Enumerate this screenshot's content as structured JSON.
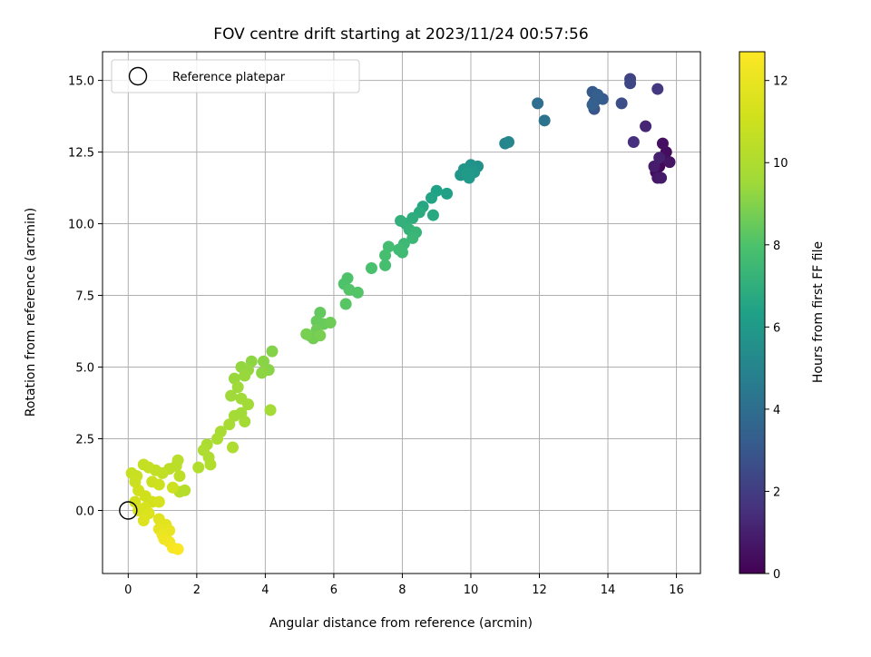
{
  "chart_data": {
    "type": "scatter",
    "title": "FOV centre drift starting at 2023/11/24 00:57:56",
    "xlabel": "Angular distance from reference (arcmin)",
    "ylabel": "Rotation from reference (arcmin)",
    "xlim": [
      -0.75,
      16.7
    ],
    "ylim": [
      -2.2,
      16.0
    ],
    "xticks": [
      0,
      2,
      4,
      6,
      8,
      10,
      12,
      14,
      16
    ],
    "yticks": [
      0.0,
      2.5,
      5.0,
      7.5,
      10.0,
      12.5,
      15.0
    ],
    "xtick_labels": [
      "0",
      "2",
      "4",
      "6",
      "8",
      "10",
      "12",
      "14",
      "16"
    ],
    "ytick_labels": [
      "0.0",
      "2.5",
      "5.0",
      "7.5",
      "10.0",
      "12.5",
      "15.0"
    ],
    "grid": true,
    "legend": {
      "position": "top-left",
      "entries": [
        "Reference platepar"
      ]
    },
    "reference_point": {
      "x": 0,
      "y": 0,
      "label": "Reference platepar"
    },
    "colorbar": {
      "label": "Hours from first FF file",
      "colormap": "viridis",
      "range": [
        0,
        12.7
      ],
      "ticks": [
        0,
        2,
        4,
        6,
        8,
        10,
        12
      ],
      "tick_labels": [
        "0",
        "2",
        "4",
        "6",
        "8",
        "10",
        "12"
      ]
    },
    "points": [
      {
        "x": 15.5,
        "y": 12.0,
        "c": 0.1
      },
      {
        "x": 15.6,
        "y": 12.2,
        "c": 0.2
      },
      {
        "x": 15.4,
        "y": 11.8,
        "c": 0.3
      },
      {
        "x": 15.7,
        "y": 12.5,
        "c": 0.4
      },
      {
        "x": 15.6,
        "y": 12.8,
        "c": 0.5
      },
      {
        "x": 15.8,
        "y": 12.15,
        "c": 0.6
      },
      {
        "x": 15.45,
        "y": 11.6,
        "c": 0.7
      },
      {
        "x": 15.55,
        "y": 11.6,
        "c": 0.8
      },
      {
        "x": 15.35,
        "y": 12.0,
        "c": 0.9
      },
      {
        "x": 15.5,
        "y": 12.3,
        "c": 1.0
      },
      {
        "x": 15.1,
        "y": 13.4,
        "c": 1.2
      },
      {
        "x": 14.75,
        "y": 12.85,
        "c": 1.5
      },
      {
        "x": 15.45,
        "y": 14.7,
        "c": 1.8
      },
      {
        "x": 14.65,
        "y": 15.05,
        "c": 2.2
      },
      {
        "x": 14.65,
        "y": 14.9,
        "c": 2.4
      },
      {
        "x": 14.4,
        "y": 14.2,
        "c": 2.6
      },
      {
        "x": 13.6,
        "y": 14.0,
        "c": 2.9
      },
      {
        "x": 13.6,
        "y": 14.25,
        "c": 3.0
      },
      {
        "x": 13.55,
        "y": 14.6,
        "c": 3.1
      },
      {
        "x": 13.85,
        "y": 14.35,
        "c": 3.2
      },
      {
        "x": 13.7,
        "y": 14.5,
        "c": 3.3
      },
      {
        "x": 13.55,
        "y": 14.15,
        "c": 3.4
      },
      {
        "x": 11.95,
        "y": 14.2,
        "c": 4.0
      },
      {
        "x": 12.15,
        "y": 13.6,
        "c": 4.2
      },
      {
        "x": 11.0,
        "y": 12.8,
        "c": 5.0
      },
      {
        "x": 11.1,
        "y": 12.85,
        "c": 5.1
      },
      {
        "x": 10.2,
        "y": 12.0,
        "c": 5.6
      },
      {
        "x": 10.0,
        "y": 12.05,
        "c": 5.7
      },
      {
        "x": 9.8,
        "y": 11.9,
        "c": 5.8
      },
      {
        "x": 9.7,
        "y": 11.7,
        "c": 5.9
      },
      {
        "x": 10.1,
        "y": 11.8,
        "c": 5.9
      },
      {
        "x": 9.95,
        "y": 11.6,
        "c": 6.0
      },
      {
        "x": 9.9,
        "y": 11.75,
        "c": 6.0
      },
      {
        "x": 9.3,
        "y": 11.05,
        "c": 6.3
      },
      {
        "x": 9.0,
        "y": 11.15,
        "c": 6.4
      },
      {
        "x": 8.85,
        "y": 10.9,
        "c": 6.5
      },
      {
        "x": 8.6,
        "y": 10.6,
        "c": 6.6
      },
      {
        "x": 8.9,
        "y": 10.3,
        "c": 6.7
      },
      {
        "x": 8.5,
        "y": 10.4,
        "c": 6.8
      },
      {
        "x": 8.3,
        "y": 10.2,
        "c": 6.9
      },
      {
        "x": 8.1,
        "y": 10.0,
        "c": 7.0
      },
      {
        "x": 7.95,
        "y": 10.1,
        "c": 7.1
      },
      {
        "x": 8.2,
        "y": 9.8,
        "c": 7.2
      },
      {
        "x": 8.4,
        "y": 9.7,
        "c": 7.3
      },
      {
        "x": 8.3,
        "y": 9.5,
        "c": 7.4
      },
      {
        "x": 8.05,
        "y": 9.3,
        "c": 7.5
      },
      {
        "x": 7.9,
        "y": 9.1,
        "c": 7.6
      },
      {
        "x": 8.0,
        "y": 9.0,
        "c": 7.6
      },
      {
        "x": 7.6,
        "y": 9.2,
        "c": 7.7
      },
      {
        "x": 7.5,
        "y": 8.9,
        "c": 7.8
      },
      {
        "x": 7.5,
        "y": 8.55,
        "c": 7.8
      },
      {
        "x": 7.1,
        "y": 8.45,
        "c": 7.9
      },
      {
        "x": 6.4,
        "y": 8.1,
        "c": 8.0
      },
      {
        "x": 6.3,
        "y": 7.9,
        "c": 8.0
      },
      {
        "x": 6.45,
        "y": 7.7,
        "c": 8.1
      },
      {
        "x": 6.7,
        "y": 7.6,
        "c": 8.1
      },
      {
        "x": 6.35,
        "y": 7.2,
        "c": 8.2
      },
      {
        "x": 5.6,
        "y": 6.9,
        "c": 8.4
      },
      {
        "x": 5.5,
        "y": 6.6,
        "c": 8.5
      },
      {
        "x": 5.7,
        "y": 6.5,
        "c": 8.5
      },
      {
        "x": 5.9,
        "y": 6.55,
        "c": 8.6
      },
      {
        "x": 5.5,
        "y": 6.3,
        "c": 8.6
      },
      {
        "x": 5.3,
        "y": 6.1,
        "c": 8.7
      },
      {
        "x": 5.4,
        "y": 6.0,
        "c": 8.7
      },
      {
        "x": 5.6,
        "y": 6.1,
        "c": 8.8
      },
      {
        "x": 5.2,
        "y": 6.15,
        "c": 8.8
      },
      {
        "x": 4.2,
        "y": 5.55,
        "c": 9.0
      },
      {
        "x": 3.95,
        "y": 5.2,
        "c": 9.1
      },
      {
        "x": 4.1,
        "y": 4.9,
        "c": 9.1
      },
      {
        "x": 3.9,
        "y": 4.8,
        "c": 9.2
      },
      {
        "x": 3.6,
        "y": 5.2,
        "c": 9.2
      },
      {
        "x": 3.5,
        "y": 4.9,
        "c": 9.3
      },
      {
        "x": 3.3,
        "y": 5.0,
        "c": 9.3
      },
      {
        "x": 3.1,
        "y": 4.6,
        "c": 9.4
      },
      {
        "x": 3.4,
        "y": 4.7,
        "c": 9.4
      },
      {
        "x": 3.2,
        "y": 4.3,
        "c": 9.5
      },
      {
        "x": 3.0,
        "y": 4.0,
        "c": 9.5
      },
      {
        "x": 3.3,
        "y": 3.9,
        "c": 9.6
      },
      {
        "x": 3.5,
        "y": 3.7,
        "c": 9.6
      },
      {
        "x": 3.3,
        "y": 3.4,
        "c": 9.6
      },
      {
        "x": 3.1,
        "y": 3.3,
        "c": 9.7
      },
      {
        "x": 3.4,
        "y": 3.1,
        "c": 9.7
      },
      {
        "x": 4.15,
        "y": 3.5,
        "c": 9.7
      },
      {
        "x": 2.95,
        "y": 3.0,
        "c": 9.8
      },
      {
        "x": 2.7,
        "y": 2.75,
        "c": 9.8
      },
      {
        "x": 2.6,
        "y": 2.5,
        "c": 9.9
      },
      {
        "x": 2.3,
        "y": 2.3,
        "c": 9.9
      },
      {
        "x": 2.2,
        "y": 2.1,
        "c": 10.0
      },
      {
        "x": 2.35,
        "y": 1.85,
        "c": 10.0
      },
      {
        "x": 3.05,
        "y": 2.2,
        "c": 10.0
      },
      {
        "x": 2.4,
        "y": 1.6,
        "c": 10.1
      },
      {
        "x": 2.05,
        "y": 1.5,
        "c": 10.1
      },
      {
        "x": 1.65,
        "y": 0.7,
        "c": 10.3
      },
      {
        "x": 1.5,
        "y": 0.65,
        "c": 10.3
      },
      {
        "x": 1.45,
        "y": 1.75,
        "c": 10.4
      },
      {
        "x": 1.4,
        "y": 1.55,
        "c": 10.4
      },
      {
        "x": 1.5,
        "y": 1.2,
        "c": 10.5
      },
      {
        "x": 1.2,
        "y": 1.45,
        "c": 10.5
      },
      {
        "x": 1.0,
        "y": 1.3,
        "c": 10.6
      },
      {
        "x": 0.8,
        "y": 1.4,
        "c": 10.6
      },
      {
        "x": 0.6,
        "y": 1.5,
        "c": 10.7
      },
      {
        "x": 0.45,
        "y": 1.6,
        "c": 10.7
      },
      {
        "x": 0.25,
        "y": 1.2,
        "c": 10.8
      },
      {
        "x": 0.1,
        "y": 1.3,
        "c": 10.8
      },
      {
        "x": 0.2,
        "y": 1.0,
        "c": 10.9
      },
      {
        "x": 0.7,
        "y": 1.0,
        "c": 10.9
      },
      {
        "x": 1.3,
        "y": 0.8,
        "c": 11.0
      },
      {
        "x": 0.9,
        "y": 0.9,
        "c": 11.0
      },
      {
        "x": 0.3,
        "y": 0.7,
        "c": 11.1
      },
      {
        "x": 0.5,
        "y": 0.5,
        "c": 11.1
      },
      {
        "x": 0.2,
        "y": 0.3,
        "c": 11.2
      },
      {
        "x": 0.7,
        "y": 0.3,
        "c": 11.2
      },
      {
        "x": 0.9,
        "y": 0.3,
        "c": 11.3
      },
      {
        "x": 0.5,
        "y": 0.1,
        "c": 11.3
      },
      {
        "x": 0.3,
        "y": 0.0,
        "c": 11.4
      },
      {
        "x": 0.6,
        "y": -0.1,
        "c": 11.5
      },
      {
        "x": 0.45,
        "y": -0.35,
        "c": 11.6
      },
      {
        "x": 0.9,
        "y": -0.3,
        "c": 11.7
      },
      {
        "x": 1.1,
        "y": -0.5,
        "c": 11.8
      },
      {
        "x": 0.9,
        "y": -0.65,
        "c": 11.9
      },
      {
        "x": 1.2,
        "y": -0.7,
        "c": 12.0
      },
      {
        "x": 1.0,
        "y": -0.85,
        "c": 12.1
      },
      {
        "x": 1.05,
        "y": -1.0,
        "c": 12.2
      },
      {
        "x": 1.2,
        "y": -1.1,
        "c": 12.3
      },
      {
        "x": 1.3,
        "y": -1.3,
        "c": 12.5
      },
      {
        "x": 1.45,
        "y": -1.35,
        "c": 12.6
      }
    ]
  }
}
